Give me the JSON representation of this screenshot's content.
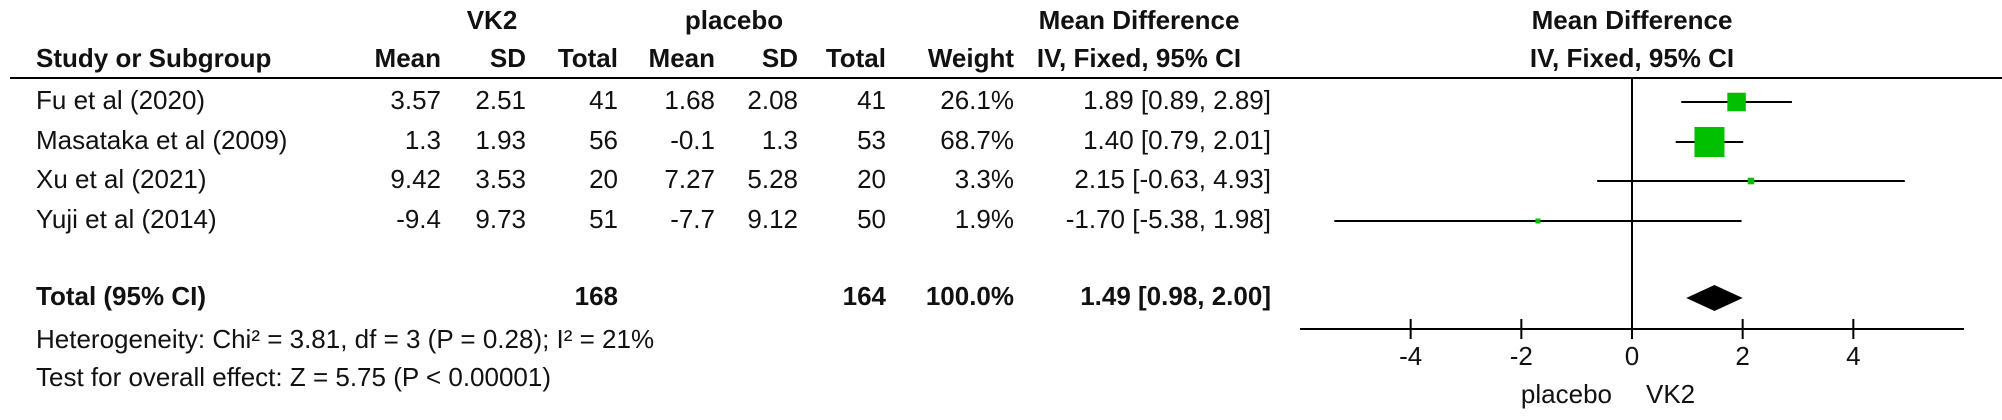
{
  "chart_data": {
    "type": "forest",
    "group_headers": [
      "VK2",
      "placebo",
      "Mean Difference"
    ],
    "plot_title": "Mean Difference",
    "columns": [
      "Study or Subgroup",
      "Mean",
      "SD",
      "Total",
      "Mean",
      "SD",
      "Total",
      "Weight",
      "IV, Fixed, 95% CI"
    ],
    "plot_subtitle": "IV, Fixed, 95% CI",
    "studies": [
      {
        "name": "Fu et al (2020)",
        "exp_mean": 3.57,
        "exp_sd": 2.51,
        "exp_total": 41,
        "ctl_mean": 1.68,
        "ctl_sd": 2.08,
        "ctl_total": 41,
        "weight": 26.1,
        "weight_label": "26.1%",
        "md": 1.89,
        "ci_low": 0.89,
        "ci_high": 2.89,
        "ci_label": "1.89 [0.89, 2.89]"
      },
      {
        "name": "Masataka et al (2009)",
        "exp_mean": 1.3,
        "exp_sd": 1.93,
        "exp_total": 56,
        "ctl_mean": -0.1,
        "ctl_sd": 1.3,
        "ctl_total": 53,
        "weight": 68.7,
        "weight_label": "68.7%",
        "md": 1.4,
        "ci_low": 0.79,
        "ci_high": 2.01,
        "ci_label": "1.40 [0.79, 2.01]"
      },
      {
        "name": "Xu et al (2021)",
        "exp_mean": 9.42,
        "exp_sd": 3.53,
        "exp_total": 20,
        "ctl_mean": 7.27,
        "ctl_sd": 5.28,
        "ctl_total": 20,
        "weight": 3.3,
        "weight_label": "3.3%",
        "md": 2.15,
        "ci_low": -0.63,
        "ci_high": 4.93,
        "ci_label": "2.15 [-0.63, 4.93]"
      },
      {
        "name": "Yuji et al (2014)",
        "exp_mean": -9.4,
        "exp_sd": 9.73,
        "exp_total": 51,
        "ctl_mean": -7.7,
        "ctl_sd": 9.12,
        "ctl_total": 50,
        "weight": 1.9,
        "weight_label": "1.9%",
        "md": -1.7,
        "ci_low": -5.38,
        "ci_high": 1.98,
        "ci_label": "-1.70 [-5.38, 1.98]"
      }
    ],
    "total": {
      "name": "Total (95% CI)",
      "exp_total": 168,
      "ctl_total": 164,
      "weight_label": "100.0%",
      "md": 1.49,
      "ci_low": 0.98,
      "ci_high": 2.0,
      "ci_label": "1.49 [0.98, 2.00]"
    },
    "heterogeneity": "Heterogeneity: Chi² = 3.81, df = 3 (P = 0.28); I² = 21%",
    "overall_effect": "Test for overall effect: Z = 5.75 (P < 0.00001)",
    "xlim": [
      -6,
      6
    ],
    "xticks": [
      -4,
      -2,
      0,
      2,
      4
    ],
    "favours": [
      "placebo",
      "VK2"
    ],
    "color": "#00c000"
  }
}
